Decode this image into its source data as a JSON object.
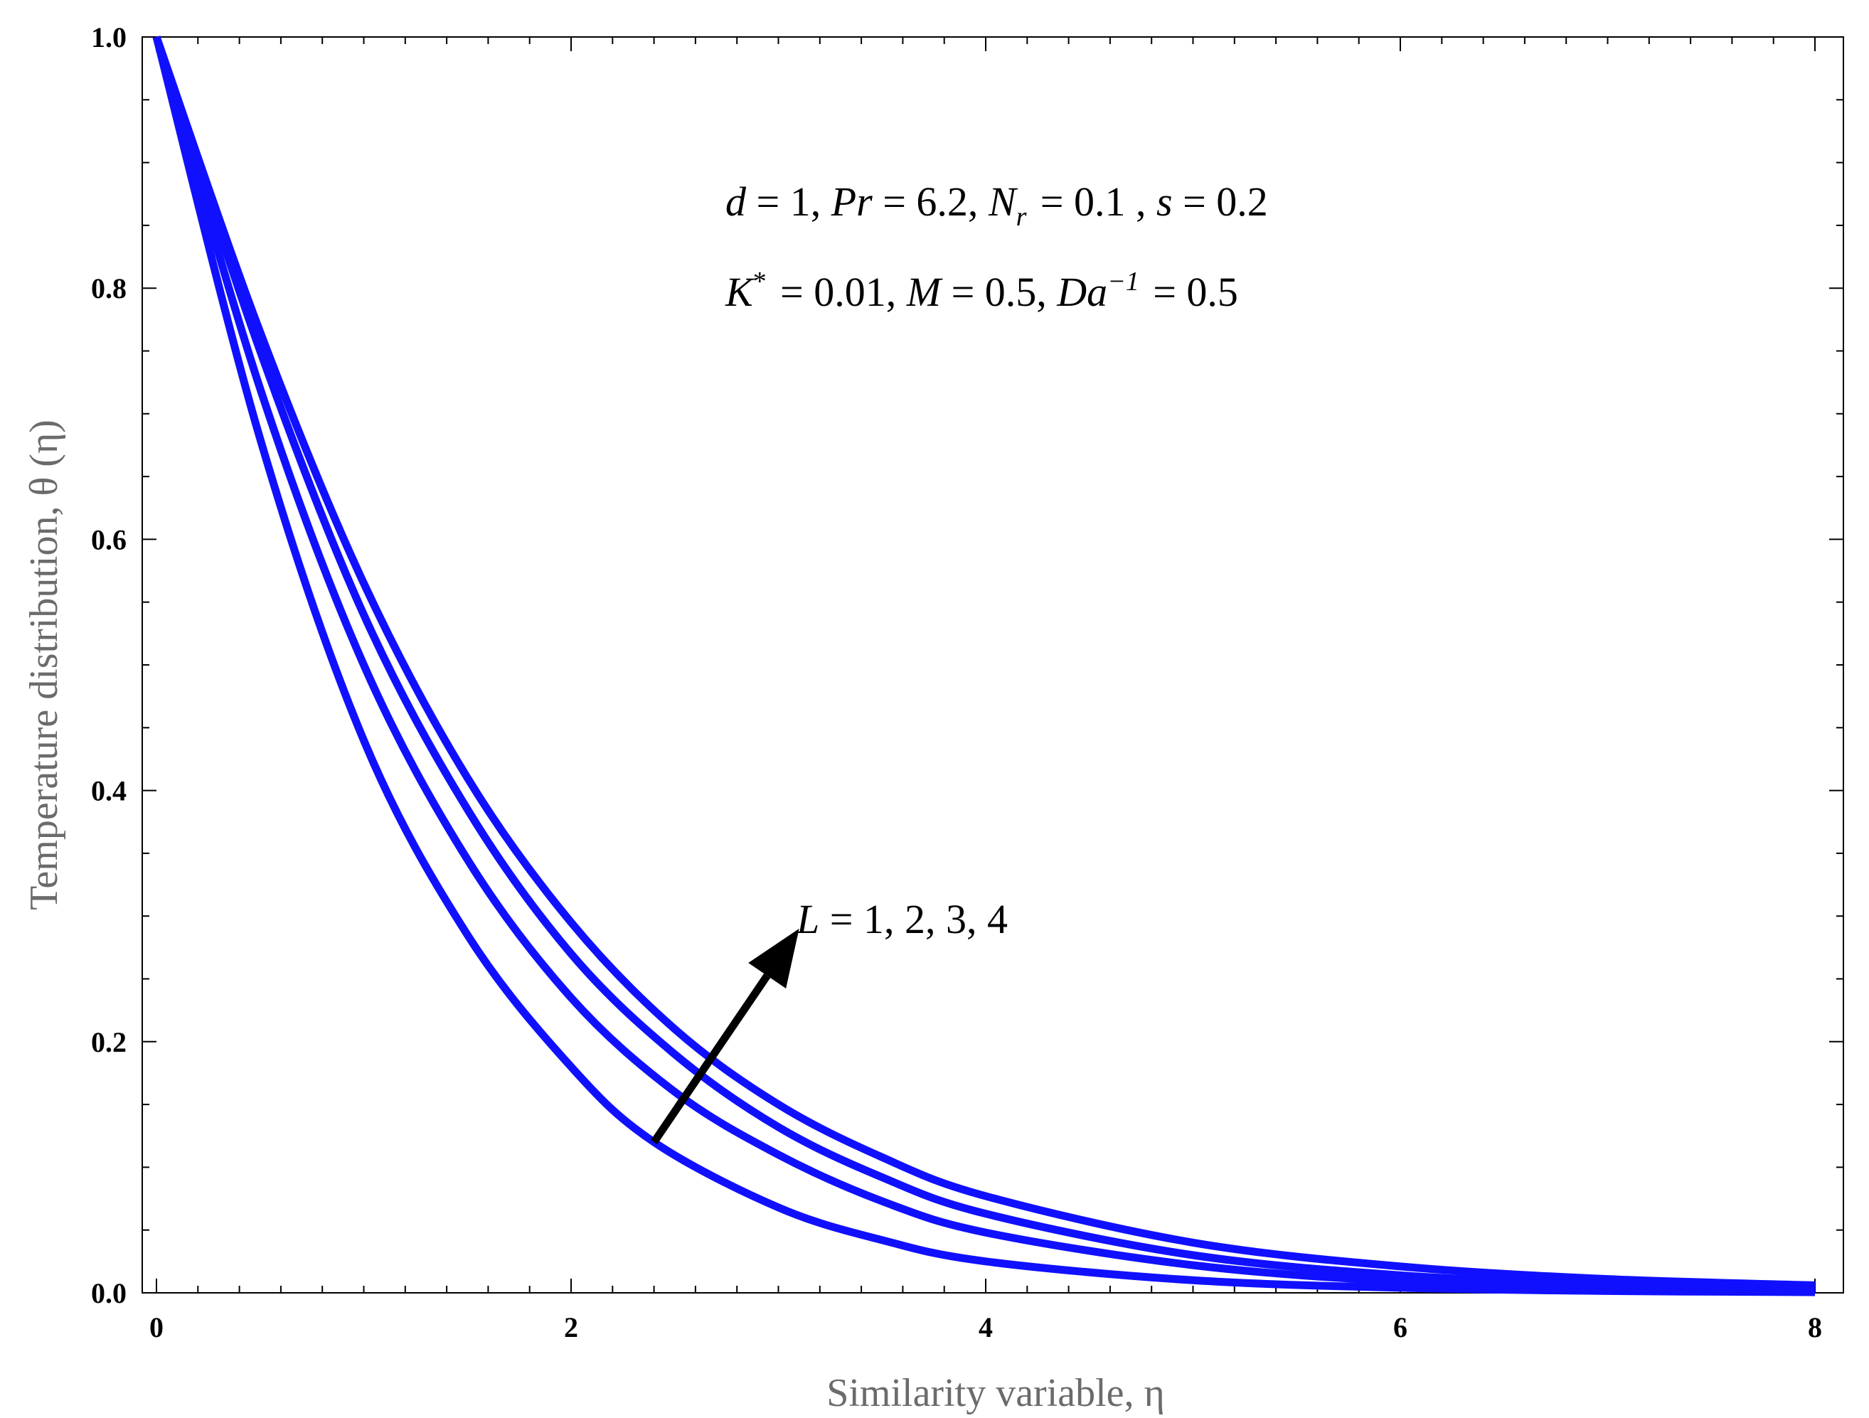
{
  "chart_data": {
    "type": "line",
    "title": "",
    "xlabel": "Similarity variable, η",
    "ylabel": "Temperature distribution, θ (η)",
    "xlim": [
      0,
      8
    ],
    "ylim": [
      0,
      1
    ],
    "xticks": [
      "0",
      "2",
      "4",
      "6",
      "8"
    ],
    "yticks": [
      "0.0",
      "0.2",
      "0.4",
      "0.6",
      "0.8",
      "1.0"
    ],
    "grid": false,
    "line_color": "#1010ff",
    "arrow_color": "#000000",
    "parameter_line_1": "d = 1, Pr = 6.2, N_r = 0.1 , s = 0.2",
    "parameter_line_2": "K* = 0.01, M = 0.5, Da^-1 = 0.5",
    "curve_label": "L = 1, 2, 3, 4",
    "series": [
      {
        "x": [
          0,
          0.5,
          1,
          1.5,
          2,
          2.4,
          3,
          3.5,
          4,
          5,
          6,
          7,
          8
        ],
        "y": [
          1.0,
          0.68,
          0.44,
          0.285,
          0.18,
          0.12,
          0.068,
          0.042,
          0.025,
          0.01,
          0.004,
          0.0015,
          0.0005
        ]
      },
      {
        "x": [
          0,
          0.5,
          1,
          1.5,
          2,
          2.5,
          3,
          3.5,
          4,
          5,
          6,
          7,
          8
        ],
        "y": [
          1.0,
          0.72,
          0.5,
          0.345,
          0.235,
          0.16,
          0.11,
          0.073,
          0.048,
          0.022,
          0.009,
          0.004,
          0.002
        ]
      },
      {
        "x": [
          0,
          0.5,
          1,
          1.5,
          2,
          2.5,
          3,
          3.5,
          4,
          5,
          6,
          7,
          8
        ],
        "y": [
          1.0,
          0.75,
          0.54,
          0.385,
          0.27,
          0.19,
          0.132,
          0.092,
          0.063,
          0.03,
          0.014,
          0.007,
          0.003
        ]
      },
      {
        "x": [
          0,
          0.5,
          1,
          1.5,
          2,
          2.5,
          3,
          3.5,
          4,
          5,
          6,
          7,
          8
        ],
        "y": [
          1.0,
          0.765,
          0.565,
          0.41,
          0.295,
          0.21,
          0.15,
          0.108,
          0.077,
          0.04,
          0.021,
          0.011,
          0.006
        ]
      }
    ],
    "arrow": {
      "from": [
        2.4,
        0.12
      ],
      "to": [
        3.1,
        0.29
      ]
    }
  }
}
